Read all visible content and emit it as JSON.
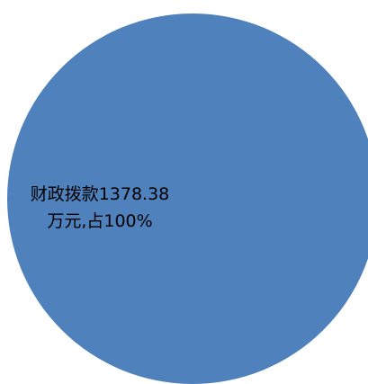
{
  "chart_data": {
    "type": "pie",
    "slices": [
      {
        "category": "财政拨款",
        "value": 1378.38,
        "unit": "万元",
        "percent": 100,
        "color": "#4F81BD",
        "label_line1": "财政拨款1378.38",
        "label_line2": "万元,占100%"
      }
    ],
    "title": "",
    "legend": "none"
  }
}
